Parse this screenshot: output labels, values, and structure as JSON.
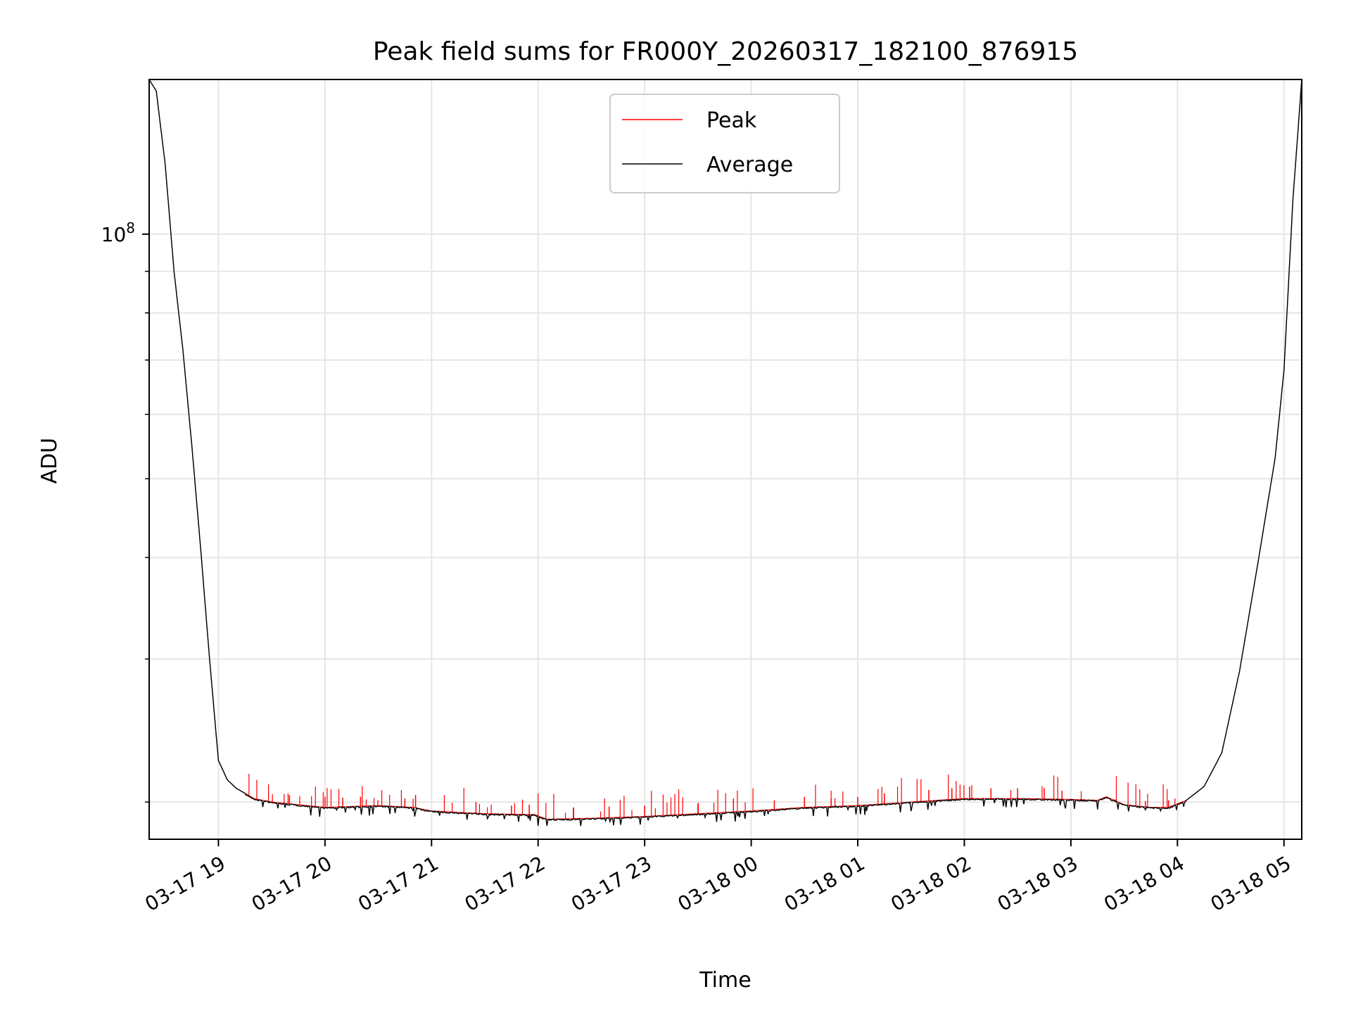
{
  "chart_data": {
    "type": "line",
    "title": "Peak field sums for FR000Y_20260317_182100_876915",
    "xlabel": "Time",
    "ylabel": "ADU",
    "yscale": "log",
    "ylim": [
      18000000,
      155000000
    ],
    "xlim": [
      "2026-03-17 18:21",
      "2026-03-18 05:10"
    ],
    "x_ticks": [
      "03-17 19",
      "03-17 20",
      "03-17 21",
      "03-17 22",
      "03-17 23",
      "03-18 00",
      "03-18 01",
      "03-18 02",
      "03-18 03",
      "03-18 04",
      "03-18 05"
    ],
    "y_tick_label": "10^8",
    "y_tick_value": 100000000,
    "grid": true,
    "legend": {
      "position": "top-center",
      "entries": [
        "Peak",
        "Average"
      ]
    },
    "colors": {
      "peak": "#ff0000",
      "average": "#000000"
    },
    "average_series": {
      "name": "Average",
      "x": [
        "2026-03-17 18:21",
        "2026-03-17 18:25",
        "2026-03-17 18:30",
        "2026-03-17 18:35",
        "2026-03-17 18:40",
        "2026-03-17 18:45",
        "2026-03-17 18:50",
        "2026-03-17 18:55",
        "2026-03-17 19:00",
        "2026-03-17 19:05",
        "2026-03-17 19:10",
        "2026-03-17 19:15",
        "2026-03-17 19:20",
        "2026-03-17 19:30",
        "2026-03-17 19:45",
        "2026-03-17 20:00",
        "2026-03-17 20:30",
        "2026-03-17 20:50",
        "2026-03-17 21:00",
        "2026-03-17 21:30",
        "2026-03-17 21:58",
        "2026-03-17 22:05",
        "2026-03-17 22:30",
        "2026-03-17 23:00",
        "2026-03-17 23:30",
        "2026-03-18 00:00",
        "2026-03-18 00:30",
        "2026-03-18 01:00",
        "2026-03-18 01:30",
        "2026-03-18 02:00",
        "2026-03-18 02:30",
        "2026-03-18 03:00",
        "2026-03-18 03:15",
        "2026-03-18 03:20",
        "2026-03-18 03:30",
        "2026-03-18 03:45",
        "2026-03-18 03:55",
        "2026-03-18 04:05",
        "2026-03-18 04:15",
        "2026-03-18 04:25",
        "2026-03-18 04:35",
        "2026-03-18 04:45",
        "2026-03-18 04:55",
        "2026-03-18 05:00",
        "2026-03-18 05:05",
        "2026-03-18 05:10"
      ],
      "values": [
        155000000,
        150000000,
        122000000,
        90000000,
        72000000,
        55000000,
        41000000,
        30000000,
        22500000,
        21300000,
        20800000,
        20500000,
        20200000,
        20000000,
        19850000,
        19700000,
        19800000,
        19700000,
        19500000,
        19350000,
        19300000,
        19050000,
        19100000,
        19200000,
        19350000,
        19500000,
        19700000,
        19800000,
        20000000,
        20200000,
        20200000,
        20150000,
        20100000,
        20300000,
        19850000,
        19700000,
        19700000,
        20100000,
        20900000,
        23000000,
        29000000,
        39000000,
        53000000,
        68000000,
        110000000,
        155000000
      ]
    },
    "peak_spikes": {
      "name": "Peak",
      "x": [
        "2026-03-17 19:40",
        "2026-03-17 20:00",
        "2026-03-17 20:10",
        "2026-03-17 20:20",
        "2026-03-17 20:45",
        "2026-03-17 20:51",
        "2026-03-17 21:25",
        "2026-03-17 21:45",
        "2026-03-17 21:55",
        "2026-03-17 22:20",
        "2026-03-17 22:40",
        "2026-03-17 23:00",
        "2026-03-17 23:30",
        "2026-03-17 23:50",
        "2026-03-18 00:13",
        "2026-03-18 00:30",
        "2026-03-18 00:45",
        "2026-03-18 01:00",
        "2026-03-18 01:15",
        "2026-03-18 01:40",
        "2026-03-18 01:53",
        "2026-03-18 02:03",
        "2026-03-18 02:15",
        "2026-03-18 02:30",
        "2026-03-18 02:45",
        "2026-03-18 02:55",
        "2026-03-18 03:25",
        "2026-03-18 03:42",
        "2026-03-18 03:55"
      ],
      "values": [
        20400000,
        20300000,
        20250000,
        20300000,
        20200000,
        20400000,
        20000000,
        19800000,
        19850000,
        19700000,
        19750000,
        19800000,
        19900000,
        20200000,
        20100000,
        20300000,
        20200000,
        20300000,
        20500000,
        20700000,
        20800000,
        20900000,
        20800000,
        20800000,
        20800000,
        20650000,
        20150000,
        20050000,
        20100000
      ]
    }
  }
}
